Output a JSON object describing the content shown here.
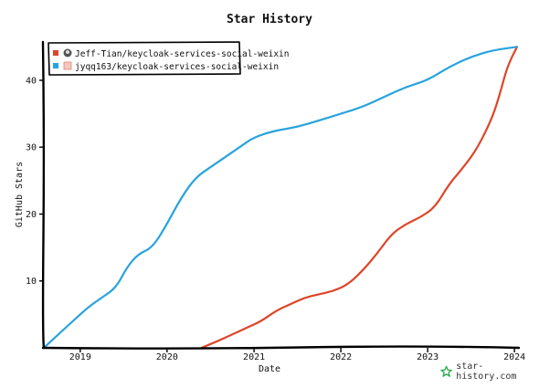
{
  "chart_data": {
    "type": "line",
    "title": "Star History",
    "xlabel": "Date",
    "ylabel": "GitHub Stars",
    "xlim": [
      "2018-08-01",
      "2024-01-12"
    ],
    "ylim": [
      0,
      46
    ],
    "x_ticks": [
      "2019",
      "2020",
      "2021",
      "2022",
      "2023",
      "2024"
    ],
    "y_ticks": [
      10,
      20,
      30,
      40
    ],
    "grid": false,
    "legend_position": "top-left",
    "series": [
      {
        "name": "Jeff-Tian/keycloak-services-social-weixin",
        "color": "#dd4528",
        "points": [
          [
            "2020-05-25",
            0
          ],
          [
            "2020-08-01",
            1
          ],
          [
            "2020-10-01",
            2
          ],
          [
            "2020-12-01",
            3
          ],
          [
            "2021-02-01",
            4
          ],
          [
            "2021-04-01",
            5.5
          ],
          [
            "2021-06-01",
            6.5
          ],
          [
            "2021-08-01",
            7.5
          ],
          [
            "2021-10-01",
            8
          ],
          [
            "2021-12-01",
            8.5
          ],
          [
            "2022-02-01",
            9.5
          ],
          [
            "2022-04-01",
            11.5
          ],
          [
            "2022-06-01",
            14
          ],
          [
            "2022-08-01",
            17
          ],
          [
            "2022-10-01",
            18.5
          ],
          [
            "2022-12-01",
            19.5
          ],
          [
            "2023-02-01",
            21
          ],
          [
            "2023-04-01",
            24.5
          ],
          [
            "2023-06-01",
            27
          ],
          [
            "2023-08-01",
            30
          ],
          [
            "2023-10-01",
            34.5
          ],
          [
            "2023-11-01",
            38
          ],
          [
            "2023-12-01",
            42
          ],
          [
            "2024-01-12",
            45
          ]
        ]
      },
      {
        "name": "jyqq163/keycloak-services-social-weixin",
        "color": "#28a3dd",
        "points": [
          [
            "2018-08-01",
            0
          ],
          [
            "2018-10-01",
            2
          ],
          [
            "2018-12-01",
            4
          ],
          [
            "2019-02-01",
            6
          ],
          [
            "2019-04-01",
            7.5
          ],
          [
            "2019-06-01",
            9
          ],
          [
            "2019-07-15",
            12
          ],
          [
            "2019-09-01",
            14
          ],
          [
            "2019-11-01",
            15
          ],
          [
            "2020-01-01",
            18.5
          ],
          [
            "2020-03-01",
            22.5
          ],
          [
            "2020-05-01",
            25.5
          ],
          [
            "2020-07-01",
            27
          ],
          [
            "2020-09-01",
            28.5
          ],
          [
            "2020-11-01",
            30
          ],
          [
            "2021-01-01",
            31.5
          ],
          [
            "2021-04-01",
            32.5
          ],
          [
            "2021-07-01",
            33
          ],
          [
            "2021-10-01",
            34
          ],
          [
            "2022-01-01",
            35
          ],
          [
            "2022-04-01",
            36
          ],
          [
            "2022-07-01",
            37.5
          ],
          [
            "2022-10-01",
            39
          ],
          [
            "2023-01-01",
            40
          ],
          [
            "2023-04-01",
            42
          ],
          [
            "2023-07-01",
            43.5
          ],
          [
            "2023-10-01",
            44.5
          ],
          [
            "2024-01-12",
            45
          ]
        ]
      }
    ]
  },
  "watermark": {
    "text": "star-history.com"
  }
}
